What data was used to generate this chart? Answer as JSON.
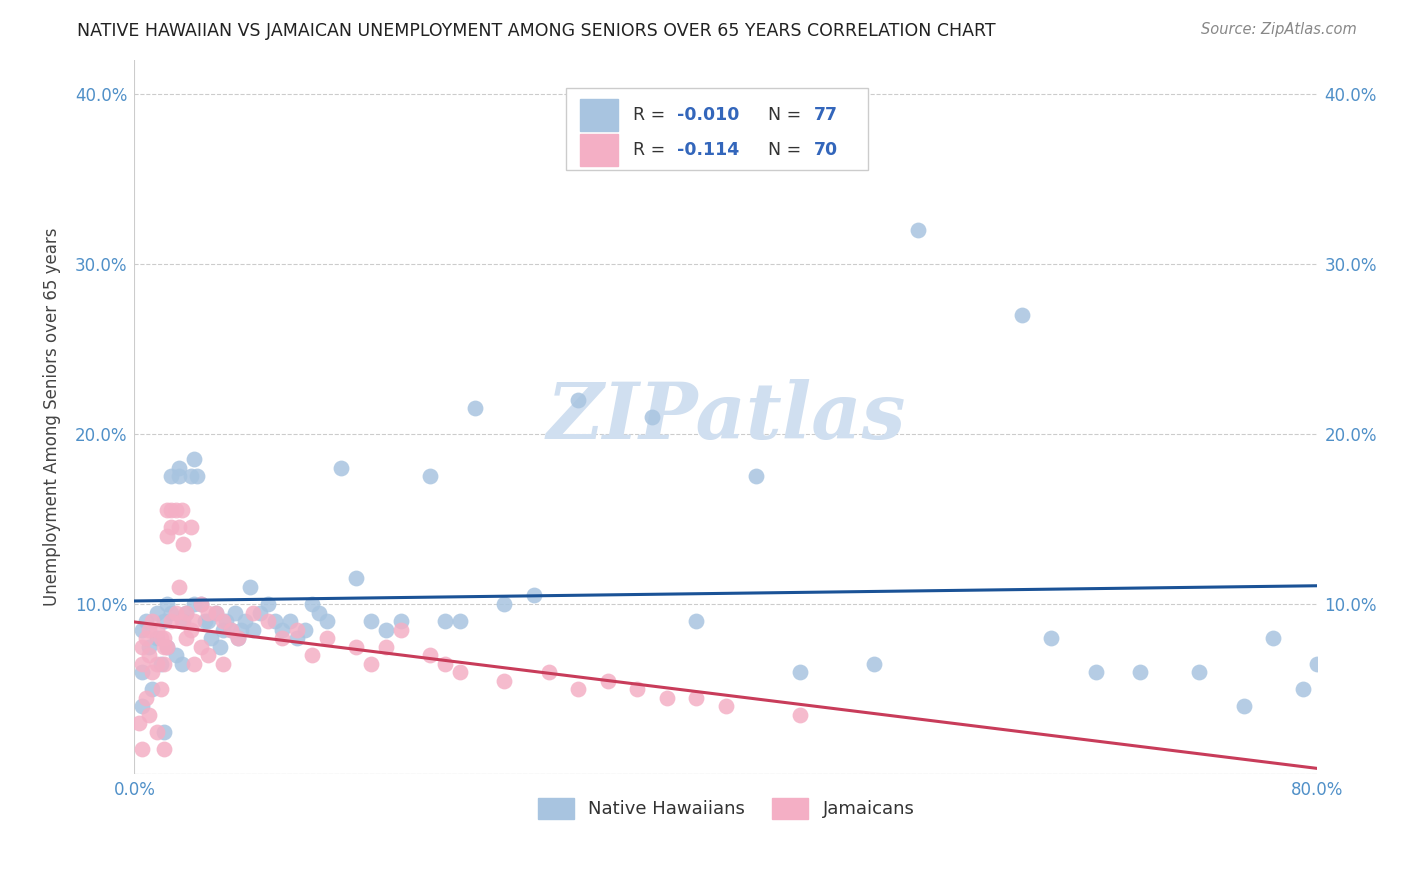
{
  "title": "NATIVE HAWAIIAN VS JAMAICAN UNEMPLOYMENT AMONG SENIORS OVER 65 YEARS CORRELATION CHART",
  "source": "Source: ZipAtlas.com",
  "ylabel": "Unemployment Among Seniors over 65 years",
  "xlim": [
    0,
    0.8
  ],
  "ylim": [
    0,
    0.42
  ],
  "xticks": [
    0.0,
    0.8
  ],
  "xticklabels": [
    "0.0%",
    "80.0%"
  ],
  "yticks_left": [
    0.1,
    0.2,
    0.3,
    0.4
  ],
  "yticks_right": [
    0.1,
    0.2,
    0.3,
    0.4
  ],
  "yticklabels_left": [
    "10.0%",
    "20.0%",
    "30.0%",
    "40.0%"
  ],
  "yticklabels_right": [
    "10.0%",
    "20.0%",
    "30.0%",
    "40.0%"
  ],
  "grid_yticks": [
    0.1,
    0.2,
    0.3,
    0.4
  ],
  "hawaiian_color": "#a8c4e0",
  "jamaican_color": "#f4afc5",
  "trend_hawaiian_color": "#1a5296",
  "trend_jamaican_color": "#c83c5a",
  "watermark": "ZIPatlas",
  "watermark_color": "#d0dff0",
  "tick_color": "#5090c8",
  "legend_hawaiian_label": "Native Hawaiians",
  "legend_jamaican_label": "Jamaicans",
  "hawaiian_scatter_x": [
    0.005,
    0.005,
    0.005,
    0.008,
    0.01,
    0.012,
    0.015,
    0.015,
    0.018,
    0.02,
    0.02,
    0.022,
    0.022,
    0.025,
    0.025,
    0.028,
    0.03,
    0.03,
    0.032,
    0.033,
    0.035,
    0.038,
    0.04,
    0.04,
    0.042,
    0.045,
    0.048,
    0.05,
    0.052,
    0.055,
    0.058,
    0.06,
    0.062,
    0.065,
    0.068,
    0.07,
    0.072,
    0.075,
    0.078,
    0.08,
    0.085,
    0.09,
    0.095,
    0.1,
    0.105,
    0.11,
    0.115,
    0.12,
    0.125,
    0.13,
    0.14,
    0.15,
    0.16,
    0.17,
    0.18,
    0.2,
    0.21,
    0.22,
    0.23,
    0.25,
    0.27,
    0.3,
    0.35,
    0.38,
    0.42,
    0.45,
    0.5,
    0.53,
    0.6,
    0.62,
    0.65,
    0.68,
    0.72,
    0.75,
    0.77,
    0.79,
    0.8
  ],
  "hawaiian_scatter_y": [
    0.085,
    0.06,
    0.04,
    0.09,
    0.075,
    0.05,
    0.095,
    0.08,
    0.065,
    0.09,
    0.025,
    0.1,
    0.075,
    0.175,
    0.095,
    0.07,
    0.18,
    0.175,
    0.065,
    0.09,
    0.095,
    0.175,
    0.185,
    0.1,
    0.175,
    0.1,
    0.09,
    0.09,
    0.08,
    0.095,
    0.075,
    0.085,
    0.09,
    0.085,
    0.095,
    0.08,
    0.085,
    0.09,
    0.11,
    0.085,
    0.095,
    0.1,
    0.09,
    0.085,
    0.09,
    0.08,
    0.085,
    0.1,
    0.095,
    0.09,
    0.18,
    0.115,
    0.09,
    0.085,
    0.09,
    0.175,
    0.09,
    0.09,
    0.215,
    0.1,
    0.105,
    0.22,
    0.21,
    0.09,
    0.175,
    0.06,
    0.065,
    0.32,
    0.27,
    0.08,
    0.06,
    0.06,
    0.06,
    0.04,
    0.08,
    0.05,
    0.065
  ],
  "jamaican_scatter_x": [
    0.003,
    0.005,
    0.005,
    0.005,
    0.008,
    0.008,
    0.01,
    0.01,
    0.01,
    0.012,
    0.012,
    0.015,
    0.015,
    0.015,
    0.018,
    0.018,
    0.02,
    0.02,
    0.02,
    0.02,
    0.022,
    0.022,
    0.022,
    0.025,
    0.025,
    0.025,
    0.028,
    0.028,
    0.03,
    0.03,
    0.032,
    0.032,
    0.033,
    0.035,
    0.035,
    0.038,
    0.038,
    0.04,
    0.04,
    0.045,
    0.045,
    0.05,
    0.05,
    0.055,
    0.06,
    0.06,
    0.065,
    0.07,
    0.08,
    0.09,
    0.1,
    0.11,
    0.12,
    0.13,
    0.15,
    0.16,
    0.17,
    0.18,
    0.2,
    0.21,
    0.22,
    0.25,
    0.28,
    0.3,
    0.32,
    0.34,
    0.36,
    0.38,
    0.4,
    0.45
  ],
  "jamaican_scatter_y": [
    0.03,
    0.075,
    0.065,
    0.015,
    0.08,
    0.045,
    0.085,
    0.07,
    0.035,
    0.09,
    0.06,
    0.085,
    0.065,
    0.025,
    0.08,
    0.05,
    0.08,
    0.075,
    0.065,
    0.015,
    0.155,
    0.14,
    0.075,
    0.155,
    0.145,
    0.09,
    0.155,
    0.095,
    0.145,
    0.11,
    0.155,
    0.09,
    0.135,
    0.095,
    0.08,
    0.145,
    0.085,
    0.09,
    0.065,
    0.1,
    0.075,
    0.095,
    0.07,
    0.095,
    0.09,
    0.065,
    0.085,
    0.08,
    0.095,
    0.09,
    0.08,
    0.085,
    0.07,
    0.08,
    0.075,
    0.065,
    0.075,
    0.085,
    0.07,
    0.065,
    0.06,
    0.055,
    0.06,
    0.05,
    0.055,
    0.05,
    0.045,
    0.045,
    0.04,
    0.035
  ]
}
